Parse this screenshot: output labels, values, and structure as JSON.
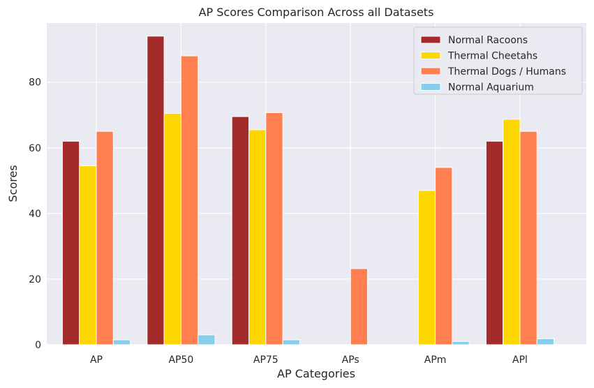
{
  "chart_data": {
    "type": "bar",
    "title": "AP Scores Comparison Across all Datasets",
    "xlabel": "AP Categories",
    "ylabel": "Scores",
    "categories": [
      "AP",
      "AP50",
      "AP75",
      "APs",
      "APm",
      "APl"
    ],
    "ylim": [
      0,
      98
    ],
    "yticks": [
      0,
      20,
      40,
      60,
      80
    ],
    "grid": true,
    "legend_position": "top-right",
    "series": [
      {
        "name": "Normal Racoons",
        "color": "#a52a2a",
        "values": [
          62.0,
          94.0,
          69.5,
          0,
          0,
          62.0
        ]
      },
      {
        "name": "Thermal Cheetahs",
        "color": "#ffd700",
        "values": [
          54.5,
          70.5,
          65.5,
          0,
          47.0,
          68.7
        ]
      },
      {
        "name": "Thermal Dogs / Humans",
        "color": "#ff7f50",
        "values": [
          65.0,
          88.0,
          70.7,
          23.2,
          54.0,
          65.0
        ]
      },
      {
        "name": "Normal Aquarium",
        "color": "#87ceeb",
        "values": [
          1.5,
          3.0,
          1.5,
          0,
          1.0,
          1.8
        ]
      }
    ]
  }
}
